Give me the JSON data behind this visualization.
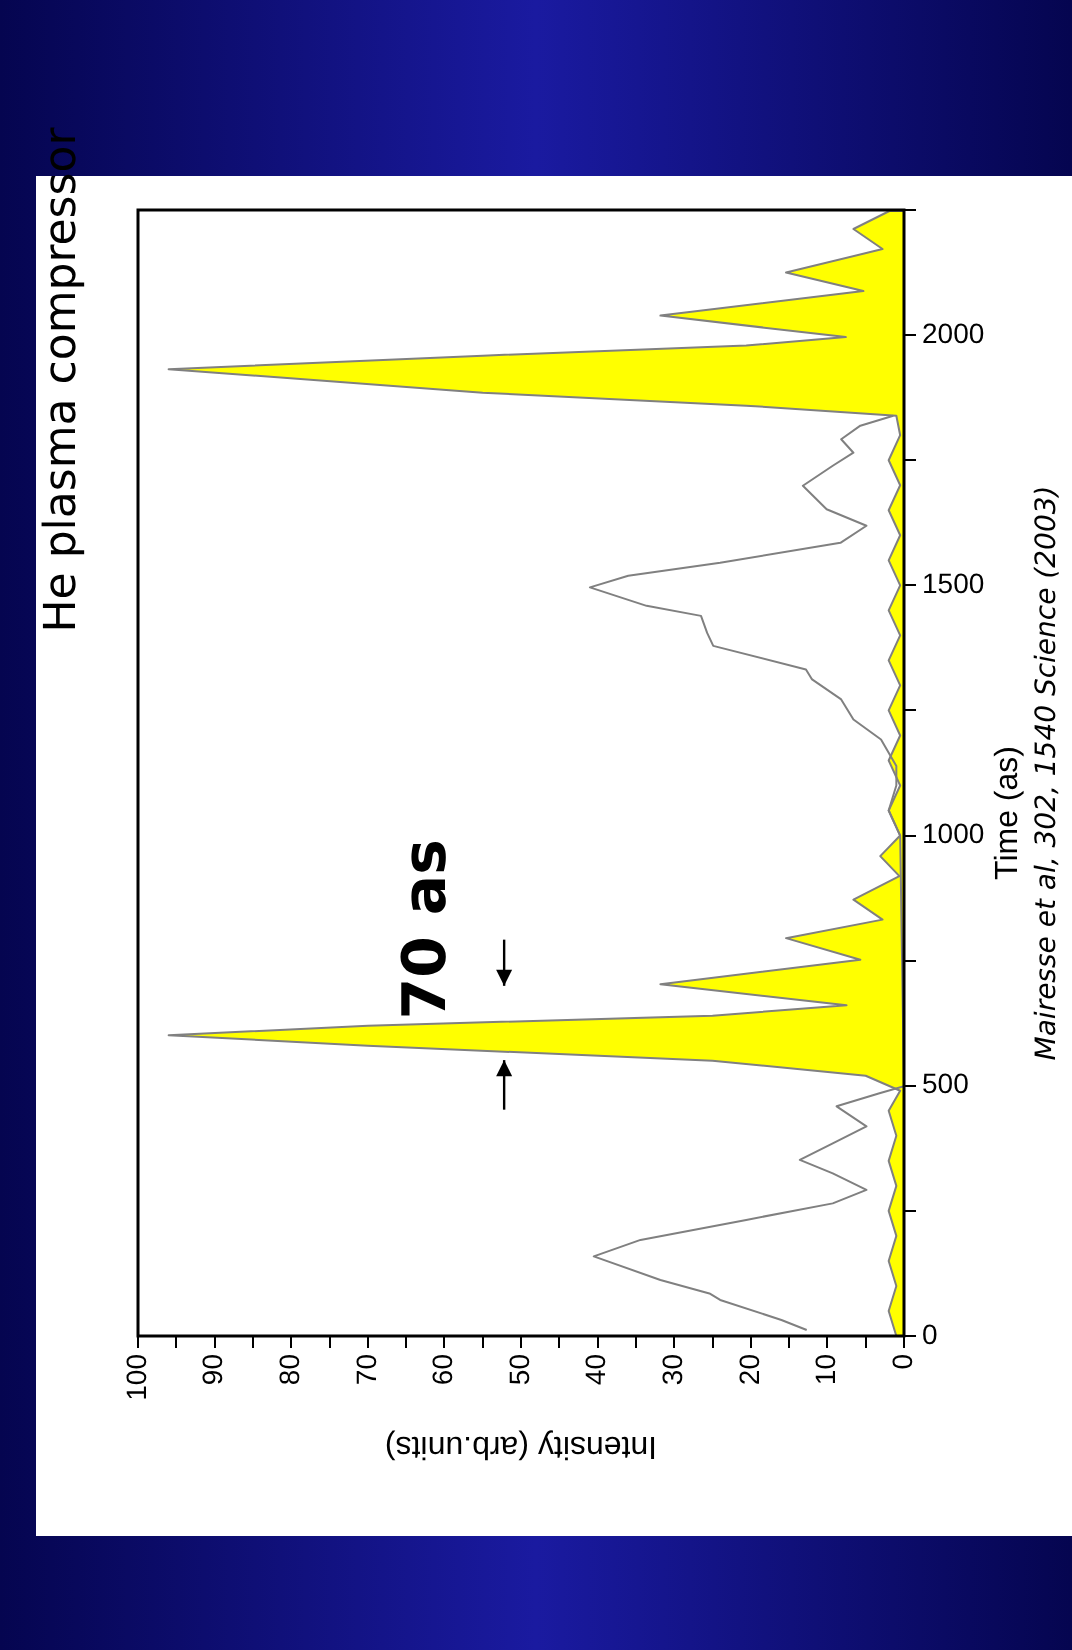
{
  "chart_data": {
    "type": "line",
    "title": "He plasma compressor",
    "xlabel": "Intensity (arb.units)",
    "ylabel": "Time (as)",
    "annotations": [
      "70 as",
      "Mairesse et al, 302, 1540 Science (2003)"
    ],
    "xlim": [
      100,
      0
    ],
    "ylim": [
      0,
      2250
    ],
    "yticks": [
      0,
      {
        "value": 250,
        "label": null
      },
      500,
      {
        "value": 750,
        "label": null
      },
      1000,
      {
        "value": 1250,
        "label": null
      },
      1500,
      {
        "value": 1750,
        "label": null
      },
      2000,
      {
        "value": 2250,
        "label": null
      }
    ],
    "xticks": [
      0,
      {
        "value": 5,
        "label": null
      },
      10,
      {
        "value": 15,
        "label": null
      },
      20,
      {
        "value": 25,
        "label": null
      },
      30,
      {
        "value": 35,
        "label": null
      },
      40,
      {
        "value": 45,
        "label": null
      },
      50,
      {
        "value": 55,
        "label": null
      },
      60,
      {
        "value": 65,
        "label": null
      },
      70,
      {
        "value": 75,
        "label": null
      },
      80,
      {
        "value": 85,
        "label": null
      },
      90,
      {
        "value": 95,
        "label": null
      },
      100
    ],
    "grid": false,
    "legend": false,
    "marker": "none",
    "series": [
      {
        "type": "area",
        "color": "#ffff00",
        "values": [
          0,
          0,
          50,
          100,
          150,
          200,
          250,
          300,
          350,
          400,
          450,
          490,
          520,
          550,
          580,
          601,
          620,
          640,
          661,
          703,
          752,
          795,
          832,
          872,
          919,
          959,
          1000,
          1050,
          1100,
          1150,
          1200,
          1250,
          1300,
          1350,
          1400,
          1450,
          1500,
          1550,
          1600,
          1650,
          1700,
          1750,
          1800,
          1839,
          1859,
          1885,
          1932,
          1959,
          1979,
          1996,
          2039,
          2088,
          2125,
          2172,
          2212,
          2248,
          2248
        ],
        "x": [
          0,
          1,
          2,
          1,
          2,
          1,
          2,
          1,
          2,
          1,
          2,
          0.5,
          5,
          25,
          70,
          96,
          70,
          25,
          7.5,
          31.8,
          5.7,
          15.4,
          2.8,
          6.6,
          0.6,
          3.1,
          0.5,
          2,
          0.5,
          2,
          0.5,
          2,
          0.5,
          2,
          0.5,
          2,
          0.5,
          2,
          0.5,
          2,
          0.5,
          2,
          0.5,
          1,
          20.6,
          55,
          96,
          55,
          20.6,
          7.6,
          31.8,
          5.3,
          15.4,
          2.8,
          6.6,
          1.9,
          0
        ]
      },
      {
        "type": "line",
        "color": "#808080",
        "values": [
          12,
          32,
          72,
          85,
          112,
          159,
          192,
          232,
          265,
          292,
          325,
          352,
          385,
          419,
          459,
          485,
          499,
          1000,
          1050,
          1100,
          1139,
          1192,
          1232,
          1272,
          1312,
          1332,
          1379,
          1405,
          1439,
          1459,
          1496,
          1519,
          1545,
          1585,
          1619,
          1652,
          1699,
          1739,
          1765,
          1792,
          1819,
          1839
        ],
        "x": [
          12.7,
          16,
          24,
          25.4,
          31.8,
          40.5,
          34.4,
          20.6,
          9.3,
          4.9,
          9.3,
          13.6,
          9.3,
          4.9,
          8.8,
          3.2,
          0,
          0.5,
          2,
          1,
          1,
          3,
          6.6,
          8.2,
          12,
          12.8,
          24.9,
          25.7,
          26.5,
          33.6,
          41,
          36,
          24,
          8.3,
          4.9,
          10.1,
          13.2,
          9.3,
          6.6,
          8.2,
          5.7,
          1.4
        ]
      }
    ]
  }
}
